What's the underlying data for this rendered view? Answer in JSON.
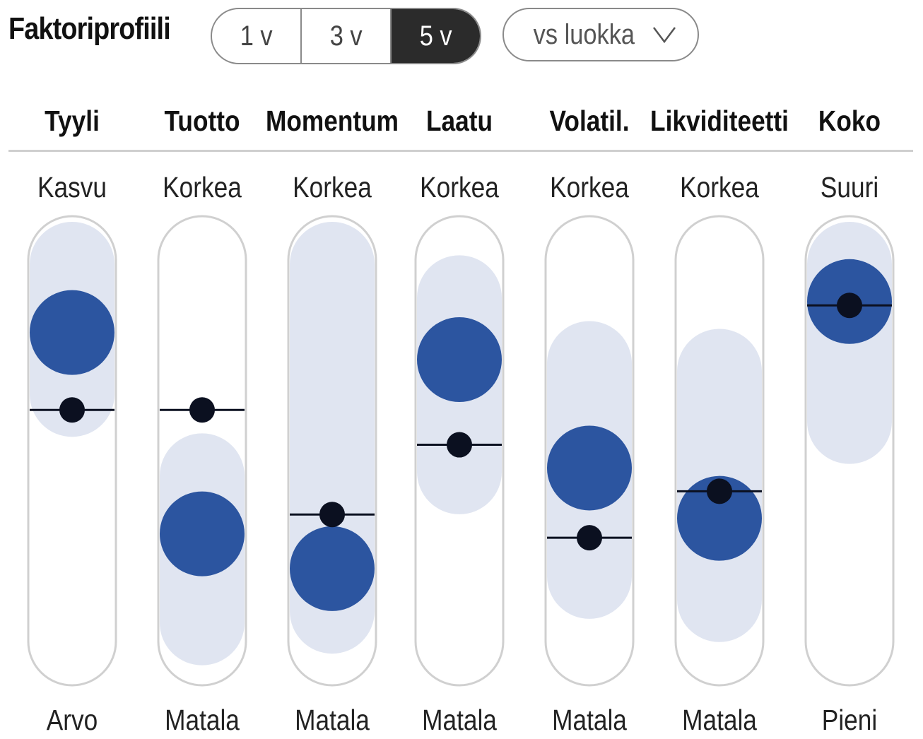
{
  "header": {
    "title": "Faktoriprofiili",
    "periods": [
      "1 v",
      "3 v",
      "5 v"
    ],
    "active_period": "5 v",
    "compare_label": "vs luokka",
    "compare_icon": "chevron-down-icon"
  },
  "colors": {
    "portfolio": "#2c55a0",
    "range": "#e0e5f1",
    "benchmark": "#0b1020",
    "track_border": "#d0d0d0",
    "active_tab": "#2b2b2b"
  },
  "chart_data": {
    "type": "scatter",
    "title": "Faktoriprofiili",
    "scale": [
      0,
      100
    ],
    "legend": [],
    "factors": [
      {
        "name": "Tyyli",
        "high_label": "Kasvu",
        "low_label": "Arvo",
        "portfolio": 82,
        "benchmark": 62,
        "range": [
          66,
          100
        ]
      },
      {
        "name": "Tuotto",
        "high_label": "Korkea",
        "low_label": "Matala",
        "portfolio": 30,
        "benchmark": 62,
        "range": [
          7,
          45
        ]
      },
      {
        "name": "Momentum",
        "high_label": "Korkea",
        "low_label": "Matala",
        "portfolio": 21,
        "benchmark": 35,
        "range": [
          10,
          100
        ]
      },
      {
        "name": "Laatu",
        "high_label": "Korkea",
        "low_label": "Matala",
        "portfolio": 75,
        "benchmark": 53,
        "range": [
          46,
          91
        ]
      },
      {
        "name": "Volatil.",
        "high_label": "Korkea",
        "low_label": "Matala",
        "portfolio": 47,
        "benchmark": 29,
        "range": [
          19,
          74
        ]
      },
      {
        "name": "Likviditeetti",
        "high_label": "Korkea",
        "low_label": "Matala",
        "portfolio": 34,
        "benchmark": 41,
        "range": [
          13,
          72
        ]
      },
      {
        "name": "Koko",
        "high_label": "Suuri",
        "low_label": "Pieni",
        "portfolio": 90,
        "benchmark": 89,
        "range": [
          59,
          100
        ]
      }
    ]
  }
}
